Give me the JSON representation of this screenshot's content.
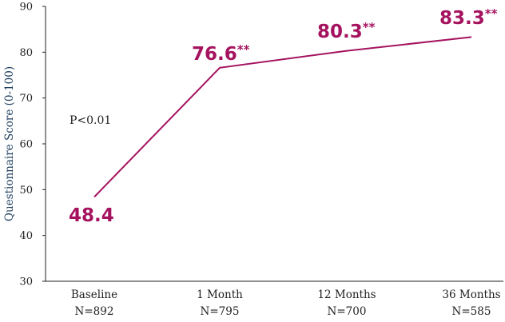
{
  "colors": {
    "series": "#a5135f",
    "axis": "#222222",
    "ylabel": "#1f3f5f"
  },
  "chart_data": {
    "type": "line",
    "title": "",
    "ylabel": "Questionnaire Score (0-100)",
    "xlabel": "",
    "ylim": [
      30,
      90
    ],
    "yticks": [
      30,
      40,
      50,
      60,
      70,
      80,
      90
    ],
    "grid": false,
    "annotation": "P<0.01",
    "categories": [
      "Baseline",
      "1 Month",
      "12 Months",
      "36 Months"
    ],
    "sample_sizes": [
      "N=892",
      "N=795",
      "N=700",
      "N=585"
    ],
    "series": [
      {
        "values": [
          48.4,
          76.6,
          80.3,
          83.3
        ],
        "labels": [
          "48.4",
          "76.6",
          "80.3",
          "83.3"
        ],
        "significance": [
          "",
          "**",
          "**",
          "**"
        ]
      }
    ]
  }
}
